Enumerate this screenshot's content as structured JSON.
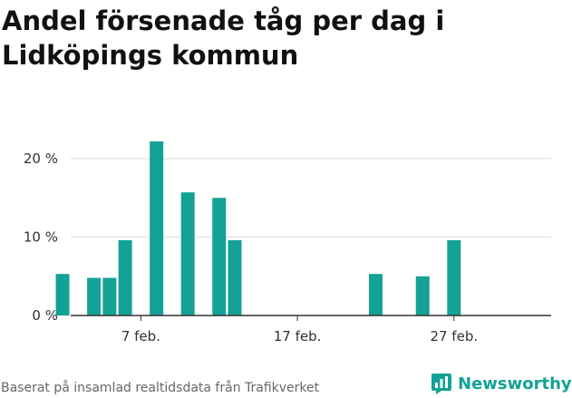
{
  "title_line1": "Andel försenade tåg per dag i",
  "title_line2": "Lidköpings kommun",
  "source": "Baserat på insamlad realtidsdata från Trafikverket",
  "brand": "Newsworthy",
  "colors": {
    "bar": "#13a295",
    "brand": "#13a295",
    "grid": "#dddddd",
    "axis": "#333333"
  },
  "chart_data": {
    "type": "bar",
    "title": "Andel försenade tåg per dag i Lidköpings kommun",
    "xlabel": "",
    "ylabel": "",
    "ylim": [
      0,
      25
    ],
    "y_ticks": [
      0,
      10,
      20
    ],
    "y_tick_labels": [
      "0 %",
      "10 %",
      "20 %"
    ],
    "x_tick_labels": [
      {
        "day": 7,
        "label": "7 feb."
      },
      {
        "day": 17,
        "label": "17 feb."
      },
      {
        "day": 27,
        "label": "27 feb."
      }
    ],
    "x_domain_days": [
      0,
      30
    ],
    "categories": [
      "2 feb.",
      "4 feb.",
      "5 feb.",
      "6 feb.",
      "8 feb.",
      "10 feb.",
      "12 feb.",
      "13 feb.",
      "22 feb.",
      "25 feb.",
      "27 feb."
    ],
    "days": [
      2,
      4,
      5,
      6,
      8,
      10,
      12,
      13,
      22,
      25,
      27
    ],
    "values": [
      5.3,
      4.8,
      4.8,
      9.6,
      22.2,
      15.7,
      15.0,
      9.6,
      5.3,
      5.0,
      9.6
    ],
    "grid": true
  }
}
